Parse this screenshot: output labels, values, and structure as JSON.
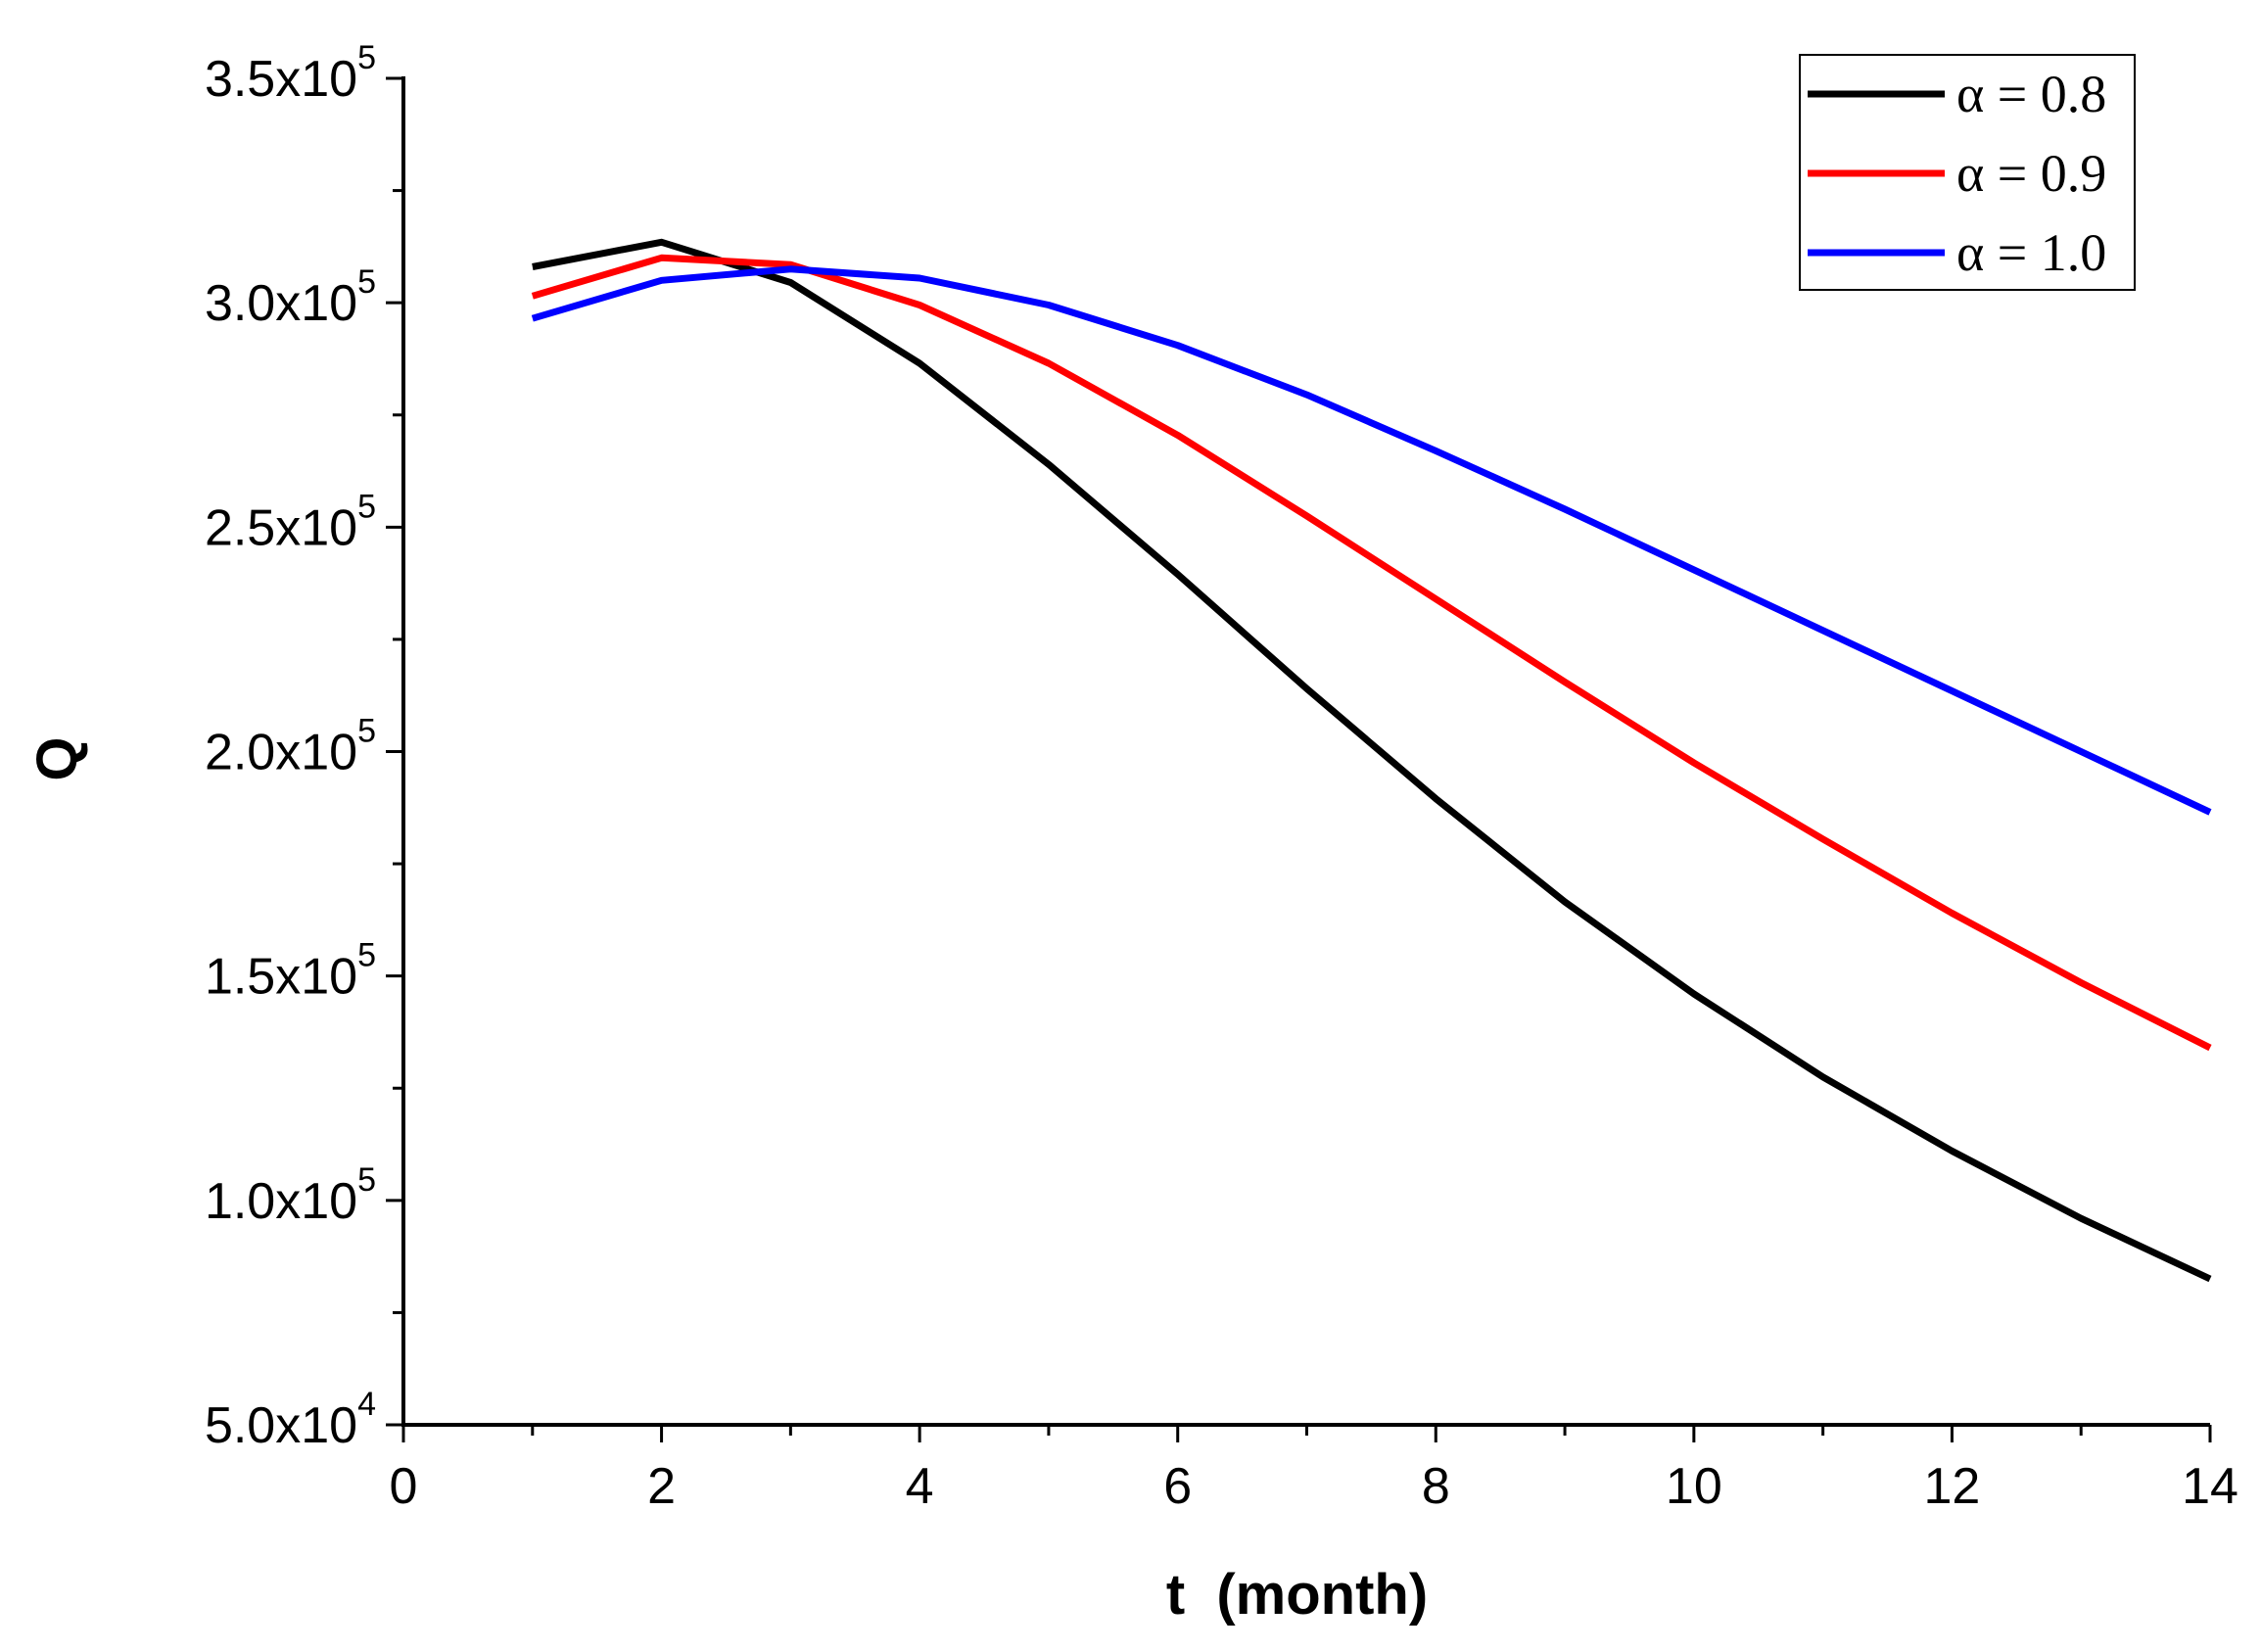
{
  "chart_data": {
    "type": "line",
    "title": "",
    "xlabel": "t  (month)",
    "ylabel": "Q",
    "xlim": [
      0,
      14
    ],
    "ylim": [
      50000,
      350000
    ],
    "x_major_ticks": [
      0,
      2,
      4,
      6,
      8,
      10,
      12,
      14
    ],
    "x_tick_labels": [
      "0",
      "2",
      "4",
      "6",
      "8",
      "10",
      "12",
      "14"
    ],
    "x_minor_ticks": [
      1,
      3,
      5,
      7,
      9,
      11,
      13
    ],
    "y_major_ticks": [
      50000,
      100000,
      150000,
      200000,
      250000,
      300000,
      350000
    ],
    "y_tick_labels": [
      {
        "mantissa": "5.0x10",
        "exponent": "4"
      },
      {
        "mantissa": "1.0x10",
        "exponent": "5"
      },
      {
        "mantissa": "1.5x10",
        "exponent": "5"
      },
      {
        "mantissa": "2.0x10",
        "exponent": "5"
      },
      {
        "mantissa": "2.5x10",
        "exponent": "5"
      },
      {
        "mantissa": "3.0x10",
        "exponent": "5"
      },
      {
        "mantissa": "3.5x10",
        "exponent": "5"
      }
    ],
    "y_minor_ticks": [
      75000,
      125000,
      175000,
      225000,
      275000,
      325000
    ],
    "grid": false,
    "legend_position": "top-right",
    "x": [
      1,
      2,
      3,
      4,
      5,
      6,
      7,
      8,
      9,
      10,
      11,
      12,
      13,
      14
    ],
    "series": [
      {
        "name": "α = 0.8",
        "color": "#000000",
        "values": [
          308000,
          313500,
          304500,
          286500,
          264000,
          239500,
          214000,
          189500,
          166500,
          146000,
          127500,
          111000,
          96000,
          82500
        ]
      },
      {
        "name": "α = 0.9",
        "color": "#ff0000",
        "values": [
          301500,
          310000,
          308500,
          299500,
          286500,
          270500,
          252500,
          234000,
          215500,
          197500,
          180500,
          164000,
          148500,
          134000
        ]
      },
      {
        "name": "α = 1.0",
        "color": "#0000ff",
        "values": [
          296500,
          305000,
          307500,
          305500,
          299500,
          290500,
          279500,
          267000,
          254000,
          240500,
          227000,
          213500,
          200000,
          186500
        ]
      }
    ]
  }
}
